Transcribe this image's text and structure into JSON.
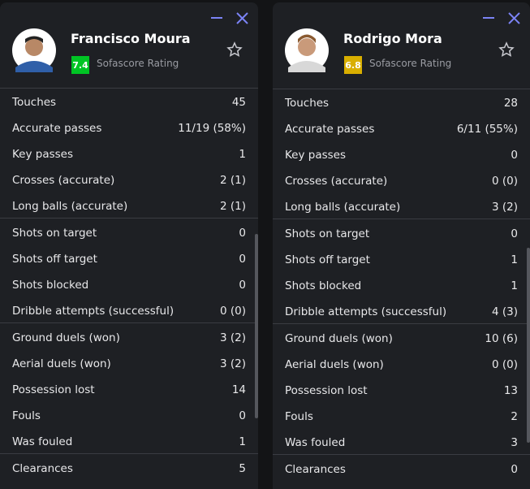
{
  "players": [
    {
      "name": "Francisco Moura",
      "rating": "7.4",
      "rating_color": "#00c424",
      "rating_label": "Sofascore Rating",
      "groups": [
        [
          [
            "Touches",
            "45"
          ],
          [
            "Accurate passes",
            "11/19 (58%)"
          ],
          [
            "Key passes",
            "1"
          ],
          [
            "Crosses (accurate)",
            "2 (1)"
          ],
          [
            "Long balls (accurate)",
            "2 (1)"
          ]
        ],
        [
          [
            "Shots on target",
            "0"
          ],
          [
            "Shots off target",
            "0"
          ],
          [
            "Shots blocked",
            "0"
          ],
          [
            "Dribble attempts (successful)",
            "0 (0)"
          ]
        ],
        [
          [
            "Ground duels (won)",
            "3 (2)"
          ],
          [
            "Aerial duels (won)",
            "3 (2)"
          ],
          [
            "Possession lost",
            "14"
          ],
          [
            "Fouls",
            "0"
          ],
          [
            "Was fouled",
            "1"
          ]
        ],
        [
          [
            "Clearances",
            "5"
          ]
        ]
      ]
    },
    {
      "name": "Rodrigo Mora",
      "rating": "6.8",
      "rating_color": "#d9af00",
      "rating_label": "Sofascore Rating",
      "groups": [
        [
          [
            "Touches",
            "28"
          ],
          [
            "Accurate passes",
            "6/11 (55%)"
          ],
          [
            "Key passes",
            "0"
          ],
          [
            "Crosses (accurate)",
            "0 (0)"
          ],
          [
            "Long balls (accurate)",
            "3 (2)"
          ]
        ],
        [
          [
            "Shots on target",
            "0"
          ],
          [
            "Shots off target",
            "1"
          ],
          [
            "Shots blocked",
            "1"
          ],
          [
            "Dribble attempts (successful)",
            "4 (3)"
          ]
        ],
        [
          [
            "Ground duels (won)",
            "10 (6)"
          ],
          [
            "Aerial duels (won)",
            "0 (0)"
          ],
          [
            "Possession lost",
            "13"
          ],
          [
            "Fouls",
            "2"
          ],
          [
            "Was fouled",
            "3"
          ]
        ],
        [
          [
            "Clearances",
            "0"
          ]
        ]
      ]
    }
  ]
}
